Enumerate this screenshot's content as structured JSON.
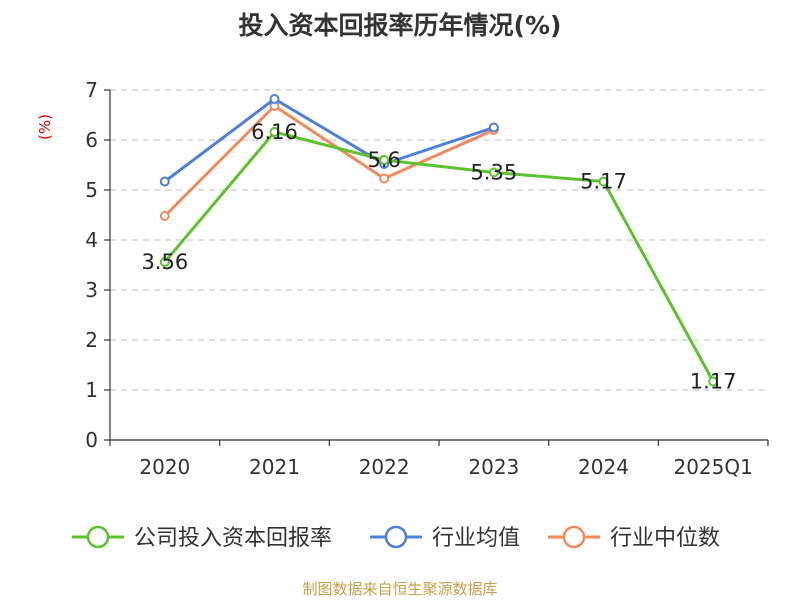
{
  "chart_data": {
    "type": "line",
    "title": "投入资本回报率历年情况(%)",
    "ylabel": "(%)",
    "xlabel": "",
    "categories": [
      "2020",
      "2021",
      "2022",
      "2023",
      "2024",
      "2025Q1"
    ],
    "ylim": [
      0,
      7
    ],
    "yticks": [
      0,
      1,
      2,
      3,
      4,
      5,
      6,
      7
    ],
    "grid": true,
    "legend_position": "bottom",
    "series": [
      {
        "name": "公司投入资本回报率",
        "color": "#5cc22e",
        "values": [
          3.56,
          6.16,
          5.6,
          5.35,
          5.17,
          1.17
        ],
        "labels": [
          "3.56",
          "6.16",
          "5.6",
          "5.35",
          "5.17",
          "1.17"
        ]
      },
      {
        "name": "行业均值",
        "color": "#4e7fdc",
        "values": [
          5.17,
          6.82,
          5.52,
          6.25,
          null,
          null
        ]
      },
      {
        "name": "行业中位数",
        "color": "#f08a5c",
        "values": [
          4.48,
          6.68,
          5.23,
          6.2,
          null,
          null
        ]
      }
    ]
  },
  "source": "制图数据来自恒生聚源数据库",
  "axis_color": "#333333",
  "grid_color": "#cccccc",
  "ylabel_color": "#e00000"
}
